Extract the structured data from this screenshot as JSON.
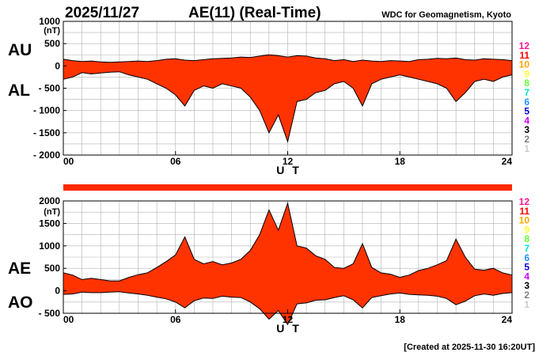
{
  "header": {
    "date": "2025/11/27",
    "title": "AE(11) (Real-Time)",
    "source": "WDC for Geomagnetism, Kyoto"
  },
  "footer": {
    "created": "[Created at 2025-11-30 16:20UT]"
  },
  "station_legend": [
    {
      "label": "12",
      "color": "#ff1493"
    },
    {
      "label": "11",
      "color": "#ff0000"
    },
    {
      "label": "10",
      "color": "#ffa500"
    },
    {
      "label": "9",
      "color": "#ffff33"
    },
    {
      "label": "8",
      "color": "#66ff33"
    },
    {
      "label": "7",
      "color": "#00e5cc"
    },
    {
      "label": "6",
      "color": "#1e90ff"
    },
    {
      "label": "5",
      "color": "#0000cd"
    },
    {
      "label": "4",
      "color": "#cc00ff"
    },
    {
      "label": "3",
      "color": "#000000"
    },
    {
      "label": "2",
      "color": "#808080"
    },
    {
      "label": "1",
      "color": "#cccccc"
    }
  ],
  "station_bar": {
    "color": "#ff2a00",
    "fraction_available": 1.0
  },
  "colors": {
    "fill": "#ff3300",
    "envelope": "#000000",
    "grid": "#b0b0b0"
  },
  "chart_data": [
    {
      "type": "area",
      "title": "",
      "xlabel": "U T",
      "ylabel_unit": "(nT)",
      "series_labels": [
        "AU",
        "AL"
      ],
      "xlim": [
        0,
        24
      ],
      "ylim": [
        -2000,
        1000
      ],
      "x_ticks": [
        "00",
        "06",
        "12",
        "18",
        "24"
      ],
      "x_tick_values": [
        0,
        6,
        12,
        18,
        24
      ],
      "y_ticks": [
        "1000",
        "500",
        "0",
        "- 500",
        "- 1000",
        "- 1500",
        "- 2000"
      ],
      "y_tick_values": [
        1000,
        500,
        0,
        -500,
        -1000,
        -1500,
        -2000
      ],
      "grid": true,
      "x": [
        0,
        0.5,
        1,
        1.5,
        2,
        2.5,
        3,
        3.5,
        4,
        4.5,
        5,
        5.5,
        6,
        6.5,
        7,
        7.5,
        8,
        8.5,
        9,
        9.5,
        10,
        10.5,
        11,
        11.5,
        12,
        12.5,
        13,
        13.5,
        14,
        14.5,
        15,
        15.5,
        16,
        16.5,
        17,
        17.5,
        18,
        18.5,
        19,
        19.5,
        20,
        20.5,
        21,
        21.5,
        22,
        22.5,
        23,
        23.5,
        24
      ],
      "series": [
        {
          "name": "AU",
          "values": [
            150,
            120,
            100,
            110,
            90,
            80,
            90,
            100,
            110,
            100,
            120,
            150,
            160,
            130,
            120,
            140,
            160,
            170,
            180,
            200,
            190,
            220,
            250,
            230,
            200,
            230,
            220,
            180,
            160,
            120,
            140,
            100,
            130,
            110,
            100,
            120,
            110,
            100,
            140,
            150,
            170,
            160,
            180,
            140,
            130,
            160,
            150,
            140,
            120
          ]
        },
        {
          "name": "AL",
          "values": [
            -300,
            -250,
            -150,
            -180,
            -160,
            -140,
            -130,
            -200,
            -250,
            -300,
            -400,
            -500,
            -650,
            -900,
            -550,
            -450,
            -500,
            -400,
            -450,
            -500,
            -700,
            -1000,
            -1500,
            -1100,
            -1700,
            -800,
            -750,
            -600,
            -550,
            -400,
            -350,
            -500,
            -900,
            -400,
            -300,
            -250,
            -200,
            -250,
            -300,
            -350,
            -400,
            -500,
            -800,
            -600,
            -350,
            -300,
            -350,
            -250,
            -200
          ]
        }
      ]
    },
    {
      "type": "area",
      "title": "",
      "xlabel": "U T",
      "ylabel_unit": "(nT)",
      "series_labels": [
        "AE",
        "AO"
      ],
      "xlim": [
        0,
        24
      ],
      "ylim": [
        -500,
        2000
      ],
      "x_ticks": [
        "00",
        "06",
        "12",
        "18",
        "24"
      ],
      "x_tick_values": [
        0,
        6,
        12,
        18,
        24
      ],
      "y_ticks": [
        "2000",
        "1500",
        "1000",
        "500",
        "0",
        "- 500"
      ],
      "y_tick_values": [
        2000,
        1500,
        1000,
        500,
        0,
        -500
      ],
      "grid": true,
      "x": [
        0,
        0.5,
        1,
        1.5,
        2,
        2.5,
        3,
        3.5,
        4,
        4.5,
        5,
        5.5,
        6,
        6.5,
        7,
        7.5,
        8,
        8.5,
        9,
        9.5,
        10,
        10.5,
        11,
        11.5,
        12,
        12.5,
        13,
        13.5,
        14,
        14.5,
        15,
        15.5,
        16,
        16.5,
        17,
        17.5,
        18,
        18.5,
        19,
        19.5,
        20,
        20.5,
        21,
        21.5,
        22,
        22.5,
        23,
        23.5,
        24
      ],
      "series": [
        {
          "name": "AE",
          "values": [
            400,
            350,
            250,
            280,
            250,
            220,
            220,
            300,
            360,
            400,
            520,
            650,
            800,
            1200,
            700,
            600,
            650,
            580,
            620,
            700,
            900,
            1250,
            1800,
            1350,
            1950,
            1000,
            950,
            780,
            700,
            520,
            500,
            600,
            1050,
            520,
            400,
            370,
            300,
            350,
            450,
            500,
            580,
            670,
            1150,
            750,
            480,
            460,
            500,
            400,
            350
          ]
        },
        {
          "name": "AO",
          "values": [
            -80,
            -70,
            -30,
            -40,
            -40,
            -30,
            -20,
            -50,
            -70,
            -100,
            -140,
            -180,
            -250,
            -380,
            -220,
            -160,
            -170,
            -120,
            -140,
            -150,
            -250,
            -400,
            -630,
            -440,
            -750,
            -290,
            -270,
            -210,
            -200,
            -150,
            -110,
            -200,
            -380,
            -150,
            -110,
            -70,
            -50,
            -80,
            -90,
            -100,
            -120,
            -170,
            -310,
            -230,
            -110,
            -70,
            -100,
            -60,
            -40
          ]
        }
      ]
    }
  ]
}
